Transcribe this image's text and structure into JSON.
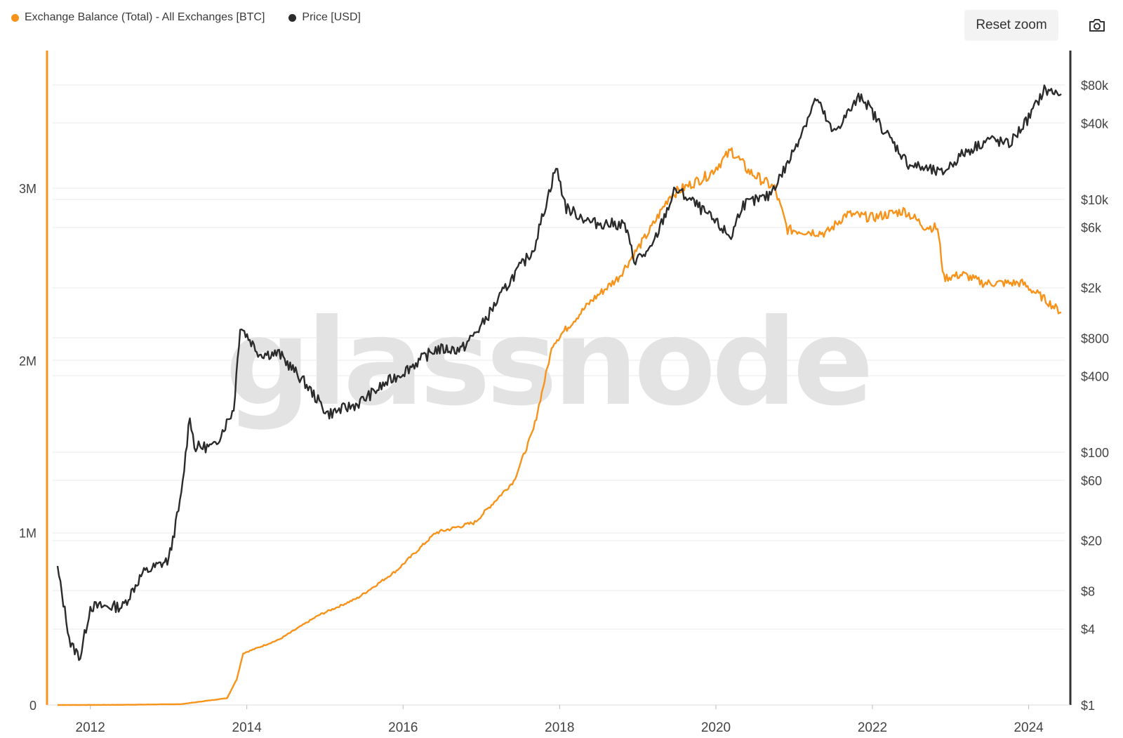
{
  "legend": {
    "series1": "Exchange Balance (Total) - All Exchanges [BTC]",
    "series2": "Price [USD]"
  },
  "controls": {
    "reset_zoom": "Reset zoom",
    "camera_icon": "camera-icon"
  },
  "watermark": "glassnode",
  "colors": {
    "balance": "#f7931a",
    "price": "#2b2b2b",
    "grid": "#e9e9e9"
  },
  "chart_data": {
    "type": "line",
    "title": "",
    "x_axis": {
      "type": "date",
      "range": [
        "2011-08-01",
        "2024-06-01"
      ],
      "ticks": [
        "2012",
        "2014",
        "2016",
        "2018",
        "2020",
        "2022",
        "2024"
      ]
    },
    "y_left": {
      "range": [
        0,
        3800000
      ],
      "ticks": [
        {
          "value": 0,
          "label": "0"
        },
        {
          "value": 1000000,
          "label": "1M"
        },
        {
          "value": 2000000,
          "label": "2M"
        },
        {
          "value": 3000000,
          "label": "3M"
        }
      ]
    },
    "y_right": {
      "scale": "log",
      "range": [
        1,
        150000
      ],
      "ticks": [
        {
          "value": 1,
          "label": "$1"
        },
        {
          "value": 4,
          "label": "$4"
        },
        {
          "value": 8,
          "label": "$8"
        },
        {
          "value": 20,
          "label": "$20"
        },
        {
          "value": 60,
          "label": "$60"
        },
        {
          "value": 100,
          "label": "$100"
        },
        {
          "value": 400,
          "label": "$400"
        },
        {
          "value": 800,
          "label": "$800"
        },
        {
          "value": 2000,
          "label": "$2k"
        },
        {
          "value": 6000,
          "label": "$6k"
        },
        {
          "value": 10000,
          "label": "$10k"
        },
        {
          "value": 40000,
          "label": "$40k"
        },
        {
          "value": 80000,
          "label": "$80k"
        }
      ]
    },
    "series": [
      {
        "name": "Exchange Balance (Total) - All Exchanges [BTC]",
        "axis": "left",
        "points": [
          [
            "2011-08-01",
            0
          ],
          [
            "2012-06-01",
            1000
          ],
          [
            "2013-03-01",
            5000
          ],
          [
            "2013-06-01",
            20000
          ],
          [
            "2013-10-01",
            40000
          ],
          [
            "2013-11-15",
            150000
          ],
          [
            "2013-12-15",
            300000
          ],
          [
            "2014-06-01",
            380000
          ],
          [
            "2014-12-01",
            520000
          ],
          [
            "2015-06-01",
            620000
          ],
          [
            "2015-12-01",
            780000
          ],
          [
            "2016-06-01",
            1000000
          ],
          [
            "2016-12-01",
            1060000
          ],
          [
            "2017-06-01",
            1300000
          ],
          [
            "2017-09-01",
            1600000
          ],
          [
            "2017-12-01",
            2100000
          ],
          [
            "2018-06-01",
            2350000
          ],
          [
            "2018-10-01",
            2480000
          ],
          [
            "2019-03-01",
            2760000
          ],
          [
            "2019-06-01",
            2960000
          ],
          [
            "2019-12-01",
            3080000
          ],
          [
            "2020-03-15",
            3220000
          ],
          [
            "2020-06-01",
            3100000
          ],
          [
            "2020-10-01",
            3000000
          ],
          [
            "2020-12-01",
            2760000
          ],
          [
            "2021-06-01",
            2740000
          ],
          [
            "2021-09-01",
            2850000
          ],
          [
            "2022-01-01",
            2830000
          ],
          [
            "2022-06-01",
            2870000
          ],
          [
            "2022-09-01",
            2780000
          ],
          [
            "2022-11-01",
            2770000
          ],
          [
            "2022-12-01",
            2480000
          ],
          [
            "2023-03-01",
            2500000
          ],
          [
            "2023-06-01",
            2450000
          ],
          [
            "2023-12-01",
            2450000
          ],
          [
            "2024-03-01",
            2370000
          ],
          [
            "2024-06-01",
            2280000
          ]
        ]
      },
      {
        "name": "Price [USD]",
        "axis": "right",
        "points": [
          [
            "2011-08-01",
            12
          ],
          [
            "2011-10-01",
            3
          ],
          [
            "2011-11-15",
            2.4
          ],
          [
            "2012-01-01",
            6
          ],
          [
            "2012-06-01",
            6
          ],
          [
            "2012-09-01",
            11
          ],
          [
            "2013-01-01",
            14
          ],
          [
            "2013-03-01",
            45
          ],
          [
            "2013-04-10",
            200
          ],
          [
            "2013-05-01",
            110
          ],
          [
            "2013-08-01",
            110
          ],
          [
            "2013-11-01",
            220
          ],
          [
            "2013-12-01",
            1000
          ],
          [
            "2014-03-01",
            600
          ],
          [
            "2014-06-01",
            600
          ],
          [
            "2014-10-01",
            350
          ],
          [
            "2015-01-15",
            200
          ],
          [
            "2015-06-01",
            240
          ],
          [
            "2015-11-01",
            370
          ],
          [
            "2016-01-01",
            430
          ],
          [
            "2016-06-01",
            650
          ],
          [
            "2016-10-01",
            650
          ],
          [
            "2017-01-01",
            1000
          ],
          [
            "2017-06-01",
            2500
          ],
          [
            "2017-09-01",
            4000
          ],
          [
            "2017-12-15",
            18000
          ],
          [
            "2018-02-01",
            8500
          ],
          [
            "2018-06-01",
            6500
          ],
          [
            "2018-11-01",
            6300
          ],
          [
            "2018-12-15",
            3300
          ],
          [
            "2019-03-01",
            3900
          ],
          [
            "2019-06-26",
            12000
          ],
          [
            "2019-09-01",
            10000
          ],
          [
            "2019-12-01",
            7300
          ],
          [
            "2020-03-12",
            5000
          ],
          [
            "2020-05-01",
            9000
          ],
          [
            "2020-09-01",
            10500
          ],
          [
            "2020-12-01",
            19000
          ],
          [
            "2021-04-14",
            63000
          ],
          [
            "2021-07-01",
            33000
          ],
          [
            "2021-11-10",
            67000
          ],
          [
            "2022-02-01",
            40000
          ],
          [
            "2022-06-18",
            19000
          ],
          [
            "2022-11-20",
            16000
          ],
          [
            "2023-03-01",
            23000
          ],
          [
            "2023-07-01",
            30000
          ],
          [
            "2023-10-01",
            27000
          ],
          [
            "2024-01-01",
            44000
          ],
          [
            "2024-03-14",
            73000
          ],
          [
            "2024-06-01",
            68000
          ]
        ]
      }
    ]
  }
}
